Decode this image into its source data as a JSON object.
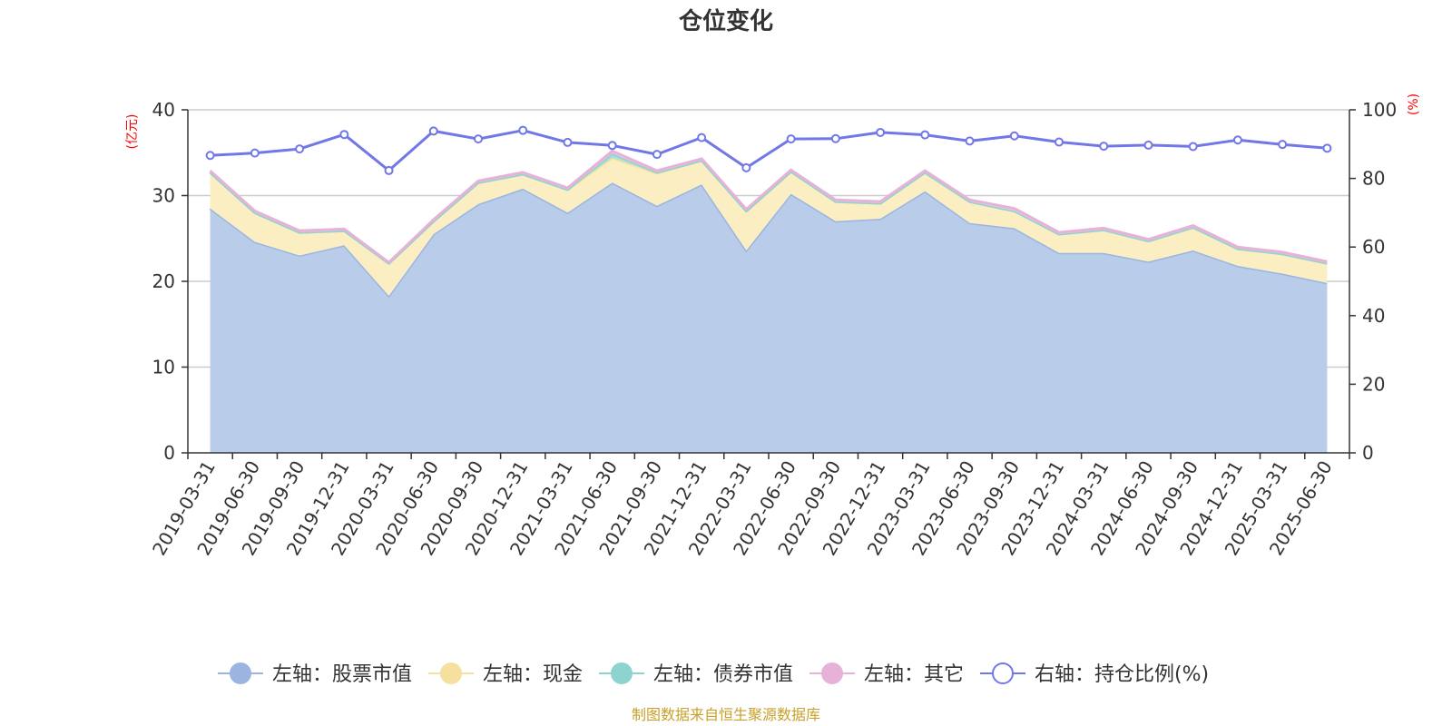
{
  "title": "仓位变化",
  "source": "制图数据来自恒生聚源数据库",
  "chart_data": {
    "type": "area",
    "categories": [
      "2019-03-31",
      "2019-06-30",
      "2019-09-30",
      "2019-12-31",
      "2020-03-31",
      "2020-06-30",
      "2020-09-30",
      "2020-12-31",
      "2021-03-31",
      "2021-06-30",
      "2021-09-30",
      "2021-12-31",
      "2022-03-31",
      "2022-06-30",
      "2022-09-30",
      "2022-12-31",
      "2023-03-31",
      "2023-06-30",
      "2023-09-30",
      "2023-12-31",
      "2024-03-31",
      "2024-06-30",
      "2024-09-30",
      "2024-12-31",
      "2025-03-31",
      "2025-06-30"
    ],
    "left_axis": {
      "unit": "(亿元)",
      "ylim": [
        0,
        40
      ],
      "ticks": [
        0,
        10,
        20,
        30,
        40
      ]
    },
    "right_axis": {
      "unit": "(%)",
      "ylim": [
        0,
        100
      ],
      "ticks": [
        0,
        20,
        40,
        60,
        80,
        100
      ]
    },
    "stacked": true,
    "series": [
      {
        "name": "左轴：股票市值",
        "axis": "left",
        "color": "#9ab5df",
        "fill": "#b9cdea",
        "values": [
          28.5,
          24.6,
          23.0,
          24.2,
          18.3,
          25.5,
          29.0,
          30.8,
          28.0,
          31.5,
          28.8,
          31.3,
          23.6,
          30.2,
          27.0,
          27.3,
          30.5,
          26.8,
          26.2,
          23.3,
          23.3,
          22.3,
          23.6,
          21.8,
          20.9,
          19.8
        ]
      },
      {
        "name": "左轴：现金",
        "axis": "left",
        "color": "#f5e09e",
        "fill": "#fbeec3",
        "values": [
          4.2,
          3.4,
          2.7,
          1.7,
          3.8,
          1.5,
          2.5,
          1.7,
          2.7,
          2.9,
          3.8,
          2.8,
          4.6,
          2.6,
          2.3,
          1.8,
          2.2,
          2.5,
          2.0,
          2.2,
          2.7,
          2.4,
          2.7,
          2.0,
          2.3,
          2.3
        ]
      },
      {
        "name": "左轴：债券市值",
        "axis": "left",
        "color": "#8dd3cf",
        "fill": "#a8e0db",
        "values": [
          0,
          0,
          0,
          0,
          0,
          0,
          0,
          0,
          0,
          0.5,
          0.1,
          0,
          0,
          0,
          0,
          0,
          0,
          0,
          0,
          0,
          0,
          0,
          0,
          0,
          0,
          0
        ]
      },
      {
        "name": "左轴：其它",
        "axis": "left",
        "color": "#e6b2d7",
        "fill": "#edc6e3",
        "values": [
          0.2,
          0.2,
          0.2,
          0.2,
          0.1,
          0.2,
          0.2,
          0.2,
          0.2,
          0.3,
          0.2,
          0.2,
          0.2,
          0.2,
          0.2,
          0.2,
          0.2,
          0.2,
          0.3,
          0.2,
          0.2,
          0.2,
          0.2,
          0.2,
          0.2,
          0.2
        ]
      },
      {
        "name": "右轴：持仓比例(%)",
        "axis": "right",
        "color": "#7277e8",
        "type": "line",
        "values": [
          86.7,
          87.4,
          88.6,
          92.8,
          82.3,
          93.8,
          91.5,
          94.0,
          90.5,
          89.6,
          87.0,
          91.9,
          83.1,
          91.5,
          91.6,
          93.4,
          92.7,
          90.9,
          92.4,
          90.6,
          89.4,
          89.7,
          89.3,
          91.2,
          89.9,
          88.8
        ]
      }
    ]
  }
}
